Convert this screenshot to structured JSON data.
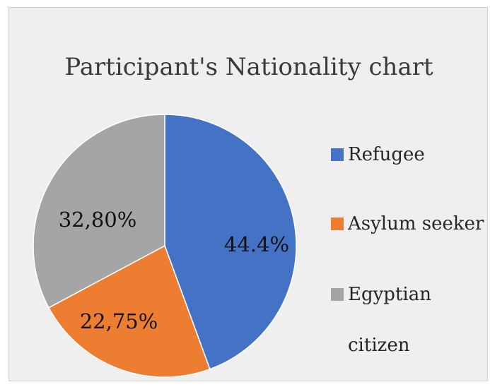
{
  "chart_data": {
    "type": "pie",
    "title": "Participant's Nationality chart",
    "slices": [
      {
        "name": "Refugee",
        "value": 44.4,
        "label": "44.4%",
        "color": "#4472c4"
      },
      {
        "name": "Asylum seeker",
        "value": 22.75,
        "label": "22,75%",
        "color": "#ed7d31"
      },
      {
        "name": "Egyptian citizen",
        "value": 32.8,
        "label": "32,80%",
        "color": "#a5a5a5"
      }
    ],
    "legend_position": "right",
    "start_angle": "12 o'clock, clockwise"
  },
  "legend": {
    "items": [
      {
        "label": "Refugee",
        "color": "#4472c4"
      },
      {
        "label": "Asylum seeker",
        "color": "#ed7d31"
      },
      {
        "label": "Egyptian citizen",
        "color": "#a5a5a5"
      }
    ]
  }
}
